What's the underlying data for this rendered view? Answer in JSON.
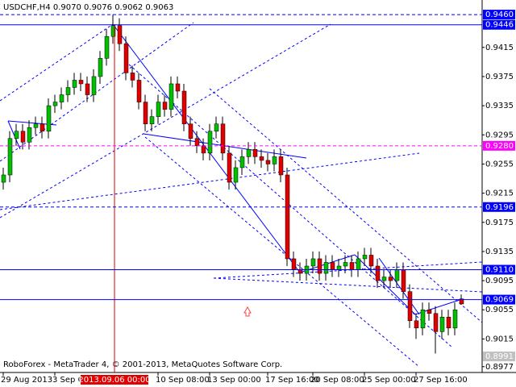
{
  "chart_data": {
    "type": "candlestick",
    "title": "USDCHF,H4  0.9070 0.9076 0.9062 0.9063",
    "footer": "RoboForex - MetaTrader 4, © 2001-2013, MetaQuotes Software Corp.",
    "cursor_label": "2013.09.06 00:00",
    "up_color": "#00c000",
    "down_color": "#e00000",
    "categories": [
      "29 Aug 2013",
      null,
      null,
      null,
      null,
      null,
      null,
      null,
      "3 Sep 00:00",
      null,
      null,
      null,
      null,
      null,
      null,
      null,
      null,
      null,
      null,
      null,
      null,
      null,
      null,
      null,
      "10 Sep 08:00",
      null,
      null,
      null,
      null,
      null,
      null,
      null,
      "13 Sep 00:00",
      null,
      null,
      null,
      null,
      null,
      null,
      null,
      null,
      "17 Sep 16:00",
      null,
      null,
      null,
      null,
      null,
      null,
      "20 Sep 08:00",
      null,
      null,
      null,
      null,
      null,
      null,
      null,
      "25 Sep 00:00",
      null,
      null,
      null,
      null,
      null,
      null,
      null,
      "27 Sep 16:00",
      null,
      null,
      null,
      null,
      null,
      null,
      null
    ],
    "open": [
      0.923,
      0.924,
      0.929,
      0.93,
      0.9285,
      0.9305,
      0.931,
      0.93,
      0.9335,
      0.934,
      0.935,
      0.936,
      0.937,
      0.9365,
      0.935,
      0.9375,
      0.94,
      0.943,
      0.9445,
      0.942,
      0.938,
      0.937,
      0.934,
      0.931,
      0.932,
      0.934,
      0.933,
      0.9365,
      0.9355,
      0.931,
      0.929,
      0.928,
      0.927,
      0.93,
      0.931,
      0.927,
      0.923,
      0.925,
      0.9265,
      0.9275,
      0.9265,
      0.926,
      0.9255,
      0.9265,
      0.924,
      0.9125,
      0.911,
      0.9105,
      0.9115,
      0.9125,
      0.9105,
      0.912,
      0.911,
      0.9115,
      0.912,
      0.911,
      0.9125,
      0.913,
      0.9115,
      0.9095,
      0.91,
      0.9095,
      0.911,
      0.908,
      0.904,
      0.903,
      0.9055,
      0.905,
      0.9025,
      0.9045,
      0.903,
      0.907
    ],
    "high": [
      0.925,
      0.93,
      0.931,
      0.931,
      0.9315,
      0.932,
      0.932,
      0.9345,
      0.935,
      0.936,
      0.937,
      0.938,
      0.938,
      0.9375,
      0.9385,
      0.941,
      0.944,
      0.946,
      0.9455,
      0.943,
      0.939,
      0.938,
      0.935,
      0.933,
      0.935,
      0.935,
      0.9375,
      0.9375,
      0.9365,
      0.932,
      0.93,
      0.929,
      0.931,
      0.932,
      0.932,
      0.928,
      0.926,
      0.9275,
      0.9285,
      0.9285,
      0.9275,
      0.927,
      0.9275,
      0.9275,
      0.925,
      0.9135,
      0.912,
      0.9125,
      0.9135,
      0.9135,
      0.913,
      0.913,
      0.9125,
      0.913,
      0.913,
      0.9135,
      0.914,
      0.914,
      0.9125,
      0.911,
      0.911,
      0.912,
      0.912,
      0.909,
      0.905,
      0.9065,
      0.9065,
      0.906,
      0.9055,
      0.9055,
      0.9065,
      0.9076
    ],
    "low": [
      0.922,
      0.923,
      0.928,
      0.9275,
      0.9275,
      0.9295,
      0.929,
      0.929,
      0.9325,
      0.933,
      0.934,
      0.935,
      0.9355,
      0.934,
      0.934,
      0.9365,
      0.939,
      0.942,
      0.941,
      0.937,
      0.936,
      0.933,
      0.93,
      0.93,
      0.931,
      0.932,
      0.932,
      0.9345,
      0.93,
      0.928,
      0.927,
      0.926,
      0.926,
      0.929,
      0.926,
      0.922,
      0.922,
      0.924,
      0.9255,
      0.9255,
      0.925,
      0.9245,
      0.9245,
      0.923,
      0.9115,
      0.91,
      0.9095,
      0.9095,
      0.9105,
      0.9095,
      0.9095,
      0.91,
      0.91,
      0.9105,
      0.91,
      0.91,
      0.9115,
      0.9105,
      0.9085,
      0.9085,
      0.9085,
      0.9085,
      0.907,
      0.903,
      0.9015,
      0.902,
      0.904,
      0.8995,
      0.9015,
      0.902,
      0.902,
      0.9062
    ],
    "close": [
      0.924,
      0.929,
      0.93,
      0.9285,
      0.9305,
      0.931,
      0.93,
      0.9335,
      0.934,
      0.935,
      0.936,
      0.937,
      0.9365,
      0.935,
      0.9375,
      0.94,
      0.943,
      0.9445,
      0.942,
      0.938,
      0.937,
      0.934,
      0.931,
      0.932,
      0.934,
      0.933,
      0.9365,
      0.9355,
      0.931,
      0.929,
      0.928,
      0.927,
      0.93,
      0.931,
      0.927,
      0.923,
      0.925,
      0.9265,
      0.9275,
      0.9265,
      0.926,
      0.9255,
      0.9265,
      0.924,
      0.9125,
      0.911,
      0.9105,
      0.9115,
      0.9125,
      0.9105,
      0.912,
      0.911,
      0.9115,
      0.912,
      0.911,
      0.9125,
      0.913,
      0.9115,
      0.9095,
      0.91,
      0.9095,
      0.911,
      0.908,
      0.904,
      0.903,
      0.9055,
      0.905,
      0.9025,
      0.9045,
      0.903,
      0.9055,
      0.9063
    ],
    "ylim": [
      0.8969,
      0.948
    ],
    "yticks": [
      {
        "value": 0.9415,
        "label": "0.9415"
      },
      {
        "value": 0.9375,
        "label": "0.9375"
      },
      {
        "value": 0.9335,
        "label": "0.9335"
      },
      {
        "value": 0.9295,
        "label": "0.9295"
      },
      {
        "value": 0.9255,
        "label": "0.9255"
      },
      {
        "value": 0.9215,
        "label": "0.9215"
      },
      {
        "value": 0.9175,
        "label": "0.9175"
      },
      {
        "value": 0.9135,
        "label": "0.9135"
      },
      {
        "value": 0.9095,
        "label": "0.9095"
      },
      {
        "value": 0.9055,
        "label": "0.9055"
      },
      {
        "value": 0.9015,
        "label": "0.9015"
      },
      {
        "value": 0.8977,
        "label": "0.8977"
      }
    ],
    "price_levels": [
      {
        "value": 0.946,
        "label": "0.9460",
        "color": "#0000ff",
        "style": "dashed"
      },
      {
        "value": 0.9446,
        "label": "0.9446",
        "color": "#0000ff",
        "style": "solid"
      },
      {
        "value": 0.928,
        "label": "0.9280",
        "color": "#ff00ff",
        "style": "dashed"
      },
      {
        "value": 0.9196,
        "label": "0.9196",
        "color": "#0000ff",
        "style": "dashed"
      },
      {
        "value": 0.911,
        "label": "0.9110",
        "color": "#0000ff",
        "style": "solid"
      },
      {
        "value": 0.9069,
        "label": "0.9069",
        "color": "#0000ff",
        "style": "solid"
      },
      {
        "value": 0.8991,
        "label": "0.8991",
        "color": "#c0c0c0",
        "style": "none"
      }
    ]
  }
}
